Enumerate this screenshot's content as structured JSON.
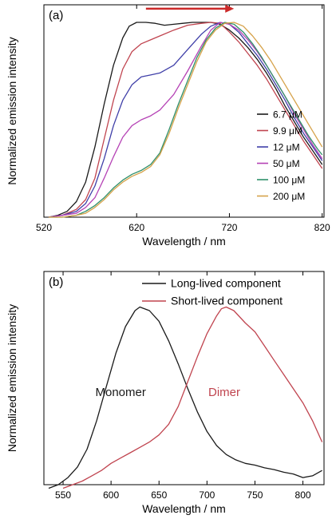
{
  "chart_data": [
    {
      "panel_label": "(a)",
      "type": "line",
      "xlabel": "Wavelength / nm",
      "ylabel": "Normalized emission intensity",
      "xlim": [
        520,
        822
      ],
      "ylim": [
        0,
        1.09
      ],
      "xticks": [
        520,
        620,
        720,
        820
      ],
      "yticks_visible": false,
      "legend_placement": "bottom-right",
      "annotations": [
        {
          "type": "arrow",
          "direction": "right",
          "from_x": 630,
          "to_x": 725,
          "y": 1.07,
          "color": "#cc2a2a"
        }
      ],
      "series": [
        {
          "name": "6.7 μM",
          "color": "#1a1a1a",
          "points": [
            [
              525,
              0
            ],
            [
              535,
              0.01
            ],
            [
              545,
              0.03
            ],
            [
              555,
              0.08
            ],
            [
              565,
              0.18
            ],
            [
              575,
              0.36
            ],
            [
              585,
              0.58
            ],
            [
              595,
              0.78
            ],
            [
              605,
              0.92
            ],
            [
              612,
              0.98
            ],
            [
              620,
              1.0
            ],
            [
              630,
              1.0
            ],
            [
              640,
              0.995
            ],
            [
              650,
              0.985
            ],
            [
              660,
              0.99
            ],
            [
              670,
              0.995
            ],
            [
              680,
              1.0
            ],
            [
              690,
              1.0
            ],
            [
              700,
              1.0
            ],
            [
              710,
              0.99
            ],
            [
              720,
              0.96
            ],
            [
              730,
              0.92
            ],
            [
              740,
              0.87
            ],
            [
              750,
              0.81
            ],
            [
              760,
              0.74
            ],
            [
              770,
              0.66
            ],
            [
              780,
              0.57
            ],
            [
              790,
              0.49
            ],
            [
              800,
              0.41
            ],
            [
              810,
              0.34
            ],
            [
              820,
              0.27
            ]
          ]
        },
        {
          "name": "9.9 μM",
          "color": "#c0444f",
          "points": [
            [
              525,
              0
            ],
            [
              540,
              0.01
            ],
            [
              555,
              0.04
            ],
            [
              565,
              0.09
            ],
            [
              575,
              0.2
            ],
            [
              585,
              0.4
            ],
            [
              595,
              0.6
            ],
            [
              605,
              0.76
            ],
            [
              615,
              0.85
            ],
            [
              625,
              0.89
            ],
            [
              635,
              0.91
            ],
            [
              645,
              0.93
            ],
            [
              660,
              0.96
            ],
            [
              675,
              0.985
            ],
            [
              690,
              0.995
            ],
            [
              700,
              1.0
            ],
            [
              710,
              0.995
            ],
            [
              720,
              0.95
            ],
            [
              730,
              0.9
            ],
            [
              740,
              0.84
            ],
            [
              750,
              0.78
            ],
            [
              760,
              0.71
            ],
            [
              770,
              0.63
            ],
            [
              780,
              0.55
            ],
            [
              790,
              0.47
            ],
            [
              800,
              0.39
            ],
            [
              810,
              0.32
            ],
            [
              820,
              0.25
            ]
          ]
        },
        {
          "name": "12 μM",
          "color": "#3f3fa8",
          "points": [
            [
              525,
              0
            ],
            [
              540,
              0.01
            ],
            [
              555,
              0.03
            ],
            [
              565,
              0.07
            ],
            [
              575,
              0.16
            ],
            [
              585,
              0.3
            ],
            [
              595,
              0.47
            ],
            [
              605,
              0.6
            ],
            [
              615,
              0.68
            ],
            [
              625,
              0.72
            ],
            [
              635,
              0.73
            ],
            [
              645,
              0.74
            ],
            [
              660,
              0.78
            ],
            [
              675,
              0.86
            ],
            [
              690,
              0.94
            ],
            [
              700,
              0.98
            ],
            [
              710,
              1.0
            ],
            [
              720,
              0.99
            ],
            [
              730,
              0.95
            ],
            [
              740,
              0.89
            ],
            [
              750,
              0.83
            ],
            [
              760,
              0.76
            ],
            [
              770,
              0.68
            ],
            [
              780,
              0.6
            ],
            [
              790,
              0.51
            ],
            [
              800,
              0.43
            ],
            [
              810,
              0.36
            ],
            [
              820,
              0.29
            ]
          ]
        },
        {
          "name": "50 μM",
          "color": "#b542b5",
          "points": [
            [
              525,
              0
            ],
            [
              540,
              0.01
            ],
            [
              555,
              0.02
            ],
            [
              565,
              0.05
            ],
            [
              575,
              0.1
            ],
            [
              585,
              0.2
            ],
            [
              595,
              0.31
            ],
            [
              605,
              0.41
            ],
            [
              615,
              0.47
            ],
            [
              625,
              0.5
            ],
            [
              635,
              0.52
            ],
            [
              645,
              0.55
            ],
            [
              660,
              0.63
            ],
            [
              675,
              0.75
            ],
            [
              690,
              0.88
            ],
            [
              700,
              0.96
            ],
            [
              710,
              1.0
            ],
            [
              720,
              0.99
            ],
            [
              730,
              0.96
            ],
            [
              740,
              0.91
            ],
            [
              750,
              0.85
            ],
            [
              760,
              0.78
            ],
            [
              770,
              0.7
            ],
            [
              780,
              0.62
            ],
            [
              790,
              0.53
            ],
            [
              800,
              0.45
            ],
            [
              810,
              0.37
            ],
            [
              820,
              0.3
            ]
          ]
        },
        {
          "name": "100 μM",
          "color": "#2f8f6a",
          "points": [
            [
              525,
              0
            ],
            [
              540,
              0.0
            ],
            [
              555,
              0.01
            ],
            [
              565,
              0.03
            ],
            [
              575,
              0.06
            ],
            [
              585,
              0.1
            ],
            [
              595,
              0.15
            ],
            [
              605,
              0.19
            ],
            [
              615,
              0.22
            ],
            [
              625,
              0.24
            ],
            [
              635,
              0.27
            ],
            [
              645,
              0.33
            ],
            [
              655,
              0.45
            ],
            [
              665,
              0.58
            ],
            [
              675,
              0.7
            ],
            [
              685,
              0.82
            ],
            [
              695,
              0.91
            ],
            [
              705,
              0.97
            ],
            [
              715,
              1.0
            ],
            [
              725,
              0.99
            ],
            [
              735,
              0.95
            ],
            [
              745,
              0.89
            ],
            [
              755,
              0.82
            ],
            [
              765,
              0.74
            ],
            [
              775,
              0.66
            ],
            [
              785,
              0.58
            ],
            [
              795,
              0.5
            ],
            [
              805,
              0.42
            ],
            [
              815,
              0.35
            ],
            [
              820,
              0.32
            ]
          ]
        },
        {
          "name": "200 μM",
          "color": "#d6a24a",
          "points": [
            [
              525,
              0
            ],
            [
              540,
              0.0
            ],
            [
              555,
              0.01
            ],
            [
              565,
              0.02
            ],
            [
              575,
              0.05
            ],
            [
              585,
              0.09
            ],
            [
              595,
              0.14
            ],
            [
              605,
              0.18
            ],
            [
              615,
              0.21
            ],
            [
              625,
              0.23
            ],
            [
              635,
              0.26
            ],
            [
              645,
              0.32
            ],
            [
              655,
              0.43
            ],
            [
              665,
              0.56
            ],
            [
              675,
              0.68
            ],
            [
              685,
              0.8
            ],
            [
              695,
              0.9
            ],
            [
              705,
              0.96
            ],
            [
              715,
              0.995
            ],
            [
              725,
              1.0
            ],
            [
              735,
              0.98
            ],
            [
              745,
              0.93
            ],
            [
              755,
              0.87
            ],
            [
              765,
              0.8
            ],
            [
              775,
              0.72
            ],
            [
              785,
              0.64
            ],
            [
              795,
              0.56
            ],
            [
              805,
              0.48
            ],
            [
              815,
              0.4
            ],
            [
              820,
              0.36
            ]
          ]
        }
      ]
    },
    {
      "panel_label": "(b)",
      "type": "line",
      "xlabel": "Wavelength / nm",
      "ylabel": "Normalized emission intensity",
      "xlim": [
        530,
        822
      ],
      "ylim": [
        0,
        1.2
      ],
      "xticks": [
        550,
        600,
        650,
        700,
        750,
        800
      ],
      "yticks_visible": false,
      "legend_placement": "top-right",
      "annotations": [
        {
          "type": "text",
          "text": "Monomer",
          "x": 610,
          "y": 0.5,
          "color": "#1a1a1a"
        },
        {
          "type": "text",
          "text": "Dimer",
          "x": 718,
          "y": 0.5,
          "color": "#c0444f"
        }
      ],
      "series": [
        {
          "name": "Long-lived component",
          "color": "#1a1a1a",
          "points": [
            [
              535,
              -0.02
            ],
            [
              545,
              0.0
            ],
            [
              555,
              0.04
            ],
            [
              565,
              0.1
            ],
            [
              575,
              0.2
            ],
            [
              585,
              0.36
            ],
            [
              595,
              0.55
            ],
            [
              605,
              0.74
            ],
            [
              615,
              0.89
            ],
            [
              625,
              0.98
            ],
            [
              630,
              1.0
            ],
            [
              640,
              0.98
            ],
            [
              650,
              0.92
            ],
            [
              660,
              0.81
            ],
            [
              670,
              0.68
            ],
            [
              680,
              0.54
            ],
            [
              690,
              0.41
            ],
            [
              700,
              0.3
            ],
            [
              710,
              0.22
            ],
            [
              720,
              0.17
            ],
            [
              730,
              0.14
            ],
            [
              740,
              0.12
            ],
            [
              750,
              0.11
            ],
            [
              760,
              0.095
            ],
            [
              770,
              0.085
            ],
            [
              780,
              0.07
            ],
            [
              790,
              0.06
            ],
            [
              800,
              0.04
            ],
            [
              810,
              0.05
            ],
            [
              820,
              0.08
            ]
          ]
        },
        {
          "name": "Short-lived component",
          "color": "#c0444f",
          "points": [
            [
              550,
              -0.02
            ],
            [
              560,
              0.0
            ],
            [
              570,
              0.02
            ],
            [
              580,
              0.05
            ],
            [
              590,
              0.08
            ],
            [
              600,
              0.12
            ],
            [
              610,
              0.15
            ],
            [
              620,
              0.18
            ],
            [
              630,
              0.21
            ],
            [
              640,
              0.24
            ],
            [
              650,
              0.28
            ],
            [
              660,
              0.34
            ],
            [
              670,
              0.44
            ],
            [
              680,
              0.58
            ],
            [
              690,
              0.72
            ],
            [
              700,
              0.85
            ],
            [
              710,
              0.95
            ],
            [
              715,
              0.99
            ],
            [
              720,
              1.0
            ],
            [
              728,
              0.98
            ],
            [
              740,
              0.91
            ],
            [
              750,
              0.86
            ],
            [
              760,
              0.78
            ],
            [
              770,
              0.7
            ],
            [
              780,
              0.62
            ],
            [
              790,
              0.54
            ],
            [
              800,
              0.46
            ],
            [
              810,
              0.36
            ],
            [
              820,
              0.24
            ]
          ]
        }
      ]
    }
  ]
}
